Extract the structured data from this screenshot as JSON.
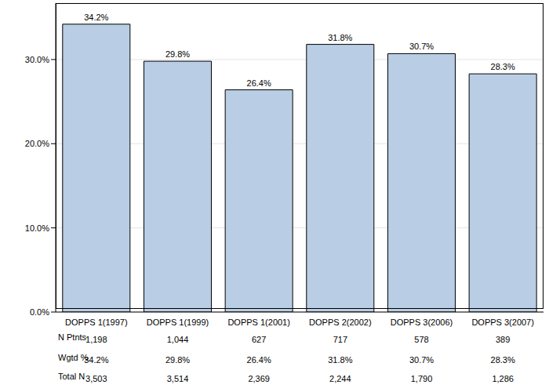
{
  "chart_data": {
    "type": "bar",
    "categories": [
      "DOPPS 1(1997)",
      "DOPPS 1(1999)",
      "DOPPS 1(2001)",
      "DOPPS 2(2002)",
      "DOPPS 3(2006)",
      "DOPPS 3(2007)"
    ],
    "values": [
      34.2,
      29.8,
      26.4,
      31.8,
      30.7,
      28.3
    ],
    "value_labels": [
      "34.2%",
      "29.8%",
      "26.4%",
      "31.8%",
      "30.7%",
      "28.3%"
    ],
    "data_labels": true,
    "color": "#b9cde5",
    "ylim": [
      0,
      36.7
    ],
    "yticks": [
      {
        "value": 0,
        "label": "0.0%"
      },
      {
        "value": 10,
        "label": "10.0%"
      },
      {
        "value": 20,
        "label": "20.0%"
      },
      {
        "value": 30,
        "label": "30.0%"
      }
    ],
    "grid": true,
    "table": {
      "rows": [
        {
          "label": "N Ptnts",
          "values": [
            "1,198",
            "1,044",
            "627",
            "717",
            "578",
            "389"
          ]
        },
        {
          "label": "Wgtd %",
          "values": [
            "34.2%",
            "29.8%",
            "26.4%",
            "31.8%",
            "30.7%",
            "28.3%"
          ]
        },
        {
          "label": "Total N",
          "values": [
            "3,503",
            "3,514",
            "2,369",
            "2,244",
            "1,790",
            "1,286"
          ]
        }
      ]
    }
  }
}
